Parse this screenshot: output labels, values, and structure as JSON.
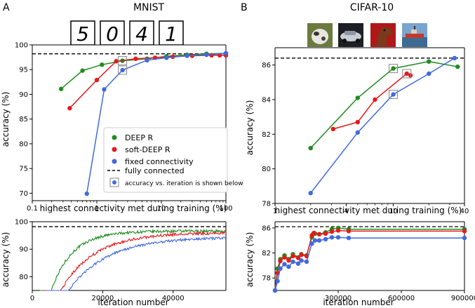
{
  "panels": {
    "A": {
      "letter": "A",
      "title": "MNIST",
      "digits": [
        "5",
        "0",
        "4",
        "1"
      ]
    },
    "B": {
      "letter": "B",
      "title": "CIFAR-10",
      "image_names": [
        "dog-thumbnail",
        "car-thumbnail",
        "horse-thumbnail",
        "ship-thumbnail"
      ]
    }
  },
  "colors": {
    "deep_r": "#1f8c1f",
    "soft_deep_r": "#e41a1c",
    "fixed": "#4169e1",
    "fully": "#000000",
    "box": "#888888"
  },
  "legend": {
    "items": [
      {
        "label": "DEEP R",
        "kind": "dot",
        "color": "#1f8c1f"
      },
      {
        "label": "soft-DEEP R",
        "kind": "dot",
        "color": "#e41a1c"
      },
      {
        "label": "fixed connectivity",
        "kind": "dot",
        "color": "#4169e1"
      },
      {
        "label": "fully connected",
        "kind": "dash",
        "color": "#000000"
      },
      {
        "label": "accuracy vs. iteration is shown below",
        "kind": "boxdot",
        "color": "#4169e1"
      }
    ]
  },
  "chart_data": [
    {
      "id": "mnist-top",
      "type": "line",
      "xscale": "log",
      "xlabel": "highest connectivity met during training (%)",
      "ylabel": "accuracy (%)",
      "xlim": [
        0.1,
        100
      ],
      "ylim": [
        68.5,
        100
      ],
      "xticks": [
        0.1,
        1,
        10,
        100
      ],
      "xticklabels": [
        "0.1",
        "1",
        "10",
        "100"
      ],
      "yticks": [
        70,
        75,
        80,
        85,
        90,
        95,
        100
      ],
      "yticklabels": [
        "70",
        "75",
        "80",
        "85",
        "90",
        "95",
        "100"
      ],
      "hline": 98.2,
      "series": [
        {
          "name": "DEEP R",
          "color": "#1f8c1f",
          "x": [
            0.28,
            0.6,
            1.2,
            2.5,
            6,
            12,
            25,
            50,
            100
          ],
          "y": [
            91.1,
            94.8,
            96.0,
            96.8,
            97.2,
            97.7,
            98.0,
            98.2,
            98.3
          ]
        },
        {
          "name": "soft-DEEP R",
          "color": "#e41a1c",
          "x": [
            0.38,
            1.0,
            2.0,
            4,
            8,
            15,
            30,
            60,
            80,
            100
          ],
          "y": [
            87.2,
            92.9,
            96.7,
            97.2,
            97.4,
            97.6,
            97.8,
            97.9,
            97.9,
            97.9
          ]
        },
        {
          "name": "fixed connectivity",
          "color": "#4169e1",
          "x": [
            0.7,
            1.3,
            2.5,
            6,
            12,
            25,
            50,
            100
          ],
          "y": [
            69.9,
            91.0,
            94.9,
            96.9,
            97.4,
            97.8,
            98.0,
            98.3
          ]
        }
      ],
      "boxed": [
        {
          "x": 2.5,
          "y": 96.8,
          "color": "#1f8c1f"
        },
        {
          "x": 2.5,
          "y": 94.9,
          "color": "#4169e1"
        }
      ]
    },
    {
      "id": "cifar-top",
      "type": "line",
      "xscale": "log",
      "xlabel": "highest connectivity met during training (%)",
      "ylabel": "accuracy (%)",
      "xlim": [
        1,
        40
      ],
      "ylim": [
        78,
        87
      ],
      "xticks": [
        1,
        4,
        10,
        40
      ],
      "xticklabels": [
        "1",
        "4",
        "10",
        "40"
      ],
      "yticks": [
        78,
        80,
        82,
        84,
        86
      ],
      "yticklabels": [
        "78",
        "80",
        "82",
        "84",
        "86"
      ],
      "hline": 86.4,
      "series": [
        {
          "name": "DEEP R",
          "color": "#1f8c1f",
          "x": [
            2.0,
            5.0,
            10.0,
            20.0,
            35.0
          ],
          "y": [
            81.2,
            84.1,
            85.8,
            86.2,
            85.9
          ]
        },
        {
          "name": "soft-DEEP R",
          "color": "#e41a1c",
          "x": [
            3.1,
            5.0,
            7.0,
            13.0,
            14.0
          ],
          "y": [
            82.3,
            82.7,
            84.0,
            85.5,
            85.4
          ]
        },
        {
          "name": "fixed connectivity",
          "color": "#4169e1",
          "x": [
            2.0,
            5.0,
            10.0,
            20.0,
            33.0
          ],
          "y": [
            78.6,
            82.1,
            84.3,
            85.5,
            86.4
          ]
        }
      ],
      "boxed": [
        {
          "x": 10.0,
          "y": 85.8,
          "color": "#1f8c1f"
        },
        {
          "x": 13.0,
          "y": 85.5,
          "color": "#e41a1c"
        },
        {
          "x": 10.0,
          "y": 84.3,
          "color": "#4169e1"
        }
      ]
    },
    {
      "id": "mnist-bottom",
      "type": "line",
      "xlabel": "iteration number",
      "ylabel": "accuracy (%)",
      "xlim": [
        0,
        55000
      ],
      "ylim": [
        75,
        100
      ],
      "xticks": [
        0,
        20000,
        40000
      ],
      "xticklabels": [
        "0",
        "20000",
        "40000"
      ],
      "yticks": [
        80,
        90,
        100
      ],
      "yticklabels": [
        "80",
        "90",
        "100"
      ],
      "hline": 98.2,
      "curves": [
        {
          "name": "DEEP R",
          "color": "#1f8c1f",
          "start": 2200,
          "plateau": 96.6,
          "tau": 6000,
          "noise": 0.5
        },
        {
          "name": "soft-DEEP R",
          "color": "#e41a1c",
          "start": 3000,
          "plateau": 96.0,
          "tau": 9500,
          "noise": 0.5
        },
        {
          "name": "fixed connectivity",
          "color": "#4169e1",
          "start": 4000,
          "plateau": 94.4,
          "tau": 11000,
          "noise": 0.45
        }
      ]
    },
    {
      "id": "cifar-bottom",
      "type": "line",
      "xlabel": "iteration number",
      "ylabel": "accuracy (%)",
      "xlim": [
        0,
        900000
      ],
      "ylim": [
        76,
        87
      ],
      "xticks": [
        300000,
        600000,
        900000
      ],
      "xticklabels": [
        "300000",
        "600000",
        "900000"
      ],
      "yticks": [
        78,
        82,
        86
      ],
      "yticklabels": [
        "78",
        "82",
        "86"
      ],
      "hline": 86.2,
      "series": [
        {
          "name": "DEEP R",
          "color": "#1f8c1f",
          "x": [
            0,
            12000,
            25000,
            45000,
            65000,
            85000,
            110000,
            125000,
            150000,
            175000,
            180000,
            190000,
            210000,
            240000,
            270000,
            300000,
            350000,
            900000
          ],
          "y": [
            76,
            79.5,
            81.0,
            81.6,
            81.0,
            81.8,
            81.3,
            81.8,
            81.6,
            84.5,
            85.0,
            85.1,
            85.0,
            85.3,
            85.8,
            86.0,
            85.8,
            85.8
          ]
        },
        {
          "name": "soft-DEEP R",
          "color": "#e41a1c",
          "x": [
            0,
            12000,
            25000,
            45000,
            65000,
            85000,
            110000,
            125000,
            150000,
            175000,
            185000,
            210000,
            240000,
            270000,
            300000,
            350000,
            900000
          ],
          "y": [
            76,
            78.8,
            80.7,
            81.3,
            80.8,
            81.5,
            81.2,
            81.7,
            81.5,
            84.8,
            85.2,
            85.0,
            85.1,
            85.4,
            85.6,
            85.5,
            85.5
          ]
        },
        {
          "name": "fixed connectivity",
          "color": "#4169e1",
          "x": [
            0,
            12000,
            25000,
            45000,
            65000,
            85000,
            110000,
            125000,
            150000,
            175000,
            190000,
            210000,
            240000,
            270000,
            300000,
            350000,
            900000
          ],
          "y": [
            76,
            77.5,
            79.5,
            80.2,
            79.8,
            80.6,
            80.3,
            80.8,
            80.6,
            83.5,
            84.0,
            84.0,
            84.2,
            84.5,
            84.5,
            84.4,
            84.4
          ]
        }
      ]
    }
  ]
}
